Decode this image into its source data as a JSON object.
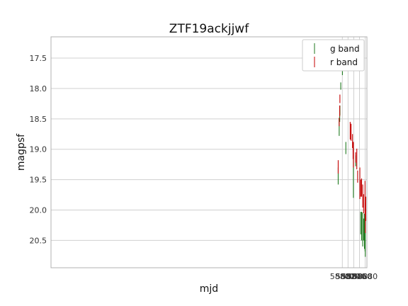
{
  "chart_data": {
    "type": "scatter",
    "title": "ZTF19ackjjwf",
    "xlabel": "mjd",
    "ylabel": "magpsf",
    "xlim": [
      57780.5,
      58886
    ],
    "ylim": [
      20.95,
      17.15
    ],
    "y_inverted": true,
    "grid": true,
    "legend_position": "top-right",
    "x_ticks": [
      58800,
      58820,
      58840,
      58860,
      58880
    ],
    "y_ticks": [
      17.5,
      18.0,
      18.5,
      19.0,
      19.5,
      20.0,
      20.5
    ],
    "x_tick_labels": [
      "58800",
      "58820",
      "58840",
      "58860",
      "58880"
    ],
    "y_tick_labels": [
      "17.5",
      "18.0",
      "18.5",
      "19.0",
      "19.5",
      "20.0",
      "20.5"
    ],
    "series": [
      {
        "name": "g band",
        "color": "#1f7a1f",
        "points": [
          {
            "x": 58785.5,
            "y_low": 19.3,
            "y_high": 19.58
          },
          {
            "x": 58789.0,
            "y_low": 18.5,
            "y_high": 18.78
          },
          {
            "x": 58790.8,
            "y_low": 18.35,
            "y_high": 18.55
          },
          {
            "x": 58791.5,
            "y_low": 18.28,
            "y_high": 18.44
          },
          {
            "x": 58794.5,
            "y_low": 17.9,
            "y_high": 18.02
          },
          {
            "x": 58800.3,
            "y_low": 17.63,
            "y_high": 17.78
          },
          {
            "x": 58812.3,
            "y_low": 18.88,
            "y_high": 19.08
          },
          {
            "x": 58838.8,
            "y_low": 19.1,
            "y_high": 19.8
          },
          {
            "x": 58846.6,
            "y_low": 19.1,
            "y_high": 19.28
          },
          {
            "x": 58864.3,
            "y_low": 20.03,
            "y_high": 20.4
          },
          {
            "x": 58867.4,
            "y_low": 20.03,
            "y_high": 20.5
          },
          {
            "x": 58871.3,
            "y_low": 20.04,
            "y_high": 20.6
          },
          {
            "x": 58874.4,
            "y_low": 20.14,
            "y_high": 20.5
          },
          {
            "x": 58877.4,
            "y_low": 20.06,
            "y_high": 20.64
          },
          {
            "x": 58879.4,
            "y_low": 20.08,
            "y_high": 20.68
          },
          {
            "x": 58880.2,
            "y_low": 20.18,
            "y_high": 20.77
          }
        ]
      },
      {
        "name": "r band",
        "color": "#c40000",
        "points": [
          {
            "x": 58785.5,
            "y_low": 19.18,
            "y_high": 19.4
          },
          {
            "x": 58789.0,
            "y_low": 18.48,
            "y_high": 18.62
          },
          {
            "x": 58790.8,
            "y_low": 18.28,
            "y_high": 18.46
          },
          {
            "x": 58791.5,
            "y_low": 18.1,
            "y_high": 18.24
          },
          {
            "x": 58797.5,
            "y_low": 17.55,
            "y_high": 17.65
          },
          {
            "x": 58800.3,
            "y_low": 17.4,
            "y_high": 17.52
          },
          {
            "x": 58803.5,
            "y_low": 17.35,
            "y_high": 17.45
          },
          {
            "x": 58806.5,
            "y_low": 17.55,
            "y_high": 17.7
          },
          {
            "x": 58827.5,
            "y_low": 18.55,
            "y_high": 18.84
          },
          {
            "x": 58830.6,
            "y_low": 18.58,
            "y_high": 18.86
          },
          {
            "x": 58835.6,
            "y_low": 18.75,
            "y_high": 18.98
          },
          {
            "x": 58837.6,
            "y_low": 18.88,
            "y_high": 19.16
          },
          {
            "x": 58838.8,
            "y_low": 18.88,
            "y_high": 19.3
          },
          {
            "x": 58846.6,
            "y_low": 19.05,
            "y_high": 19.22
          },
          {
            "x": 58850.6,
            "y_low": 18.99,
            "y_high": 19.33
          },
          {
            "x": 58853.5,
            "y_low": 19.35,
            "y_high": 19.55
          },
          {
            "x": 58861.3,
            "y_low": 19.3,
            "y_high": 19.82
          },
          {
            "x": 58864.3,
            "y_low": 19.5,
            "y_high": 19.78
          },
          {
            "x": 58867.4,
            "y_low": 19.48,
            "y_high": 19.78
          },
          {
            "x": 58871.3,
            "y_low": 19.58,
            "y_high": 19.96
          },
          {
            "x": 58874.4,
            "y_low": 19.74,
            "y_high": 20.05
          },
          {
            "x": 58879.4,
            "y_low": 19.52,
            "y_high": 20.08
          },
          {
            "x": 58880.2,
            "y_low": 19.88,
            "y_high": 20.38
          },
          {
            "x": 58881.8,
            "y_low": 19.78,
            "y_high": 20.18
          }
        ]
      }
    ]
  }
}
